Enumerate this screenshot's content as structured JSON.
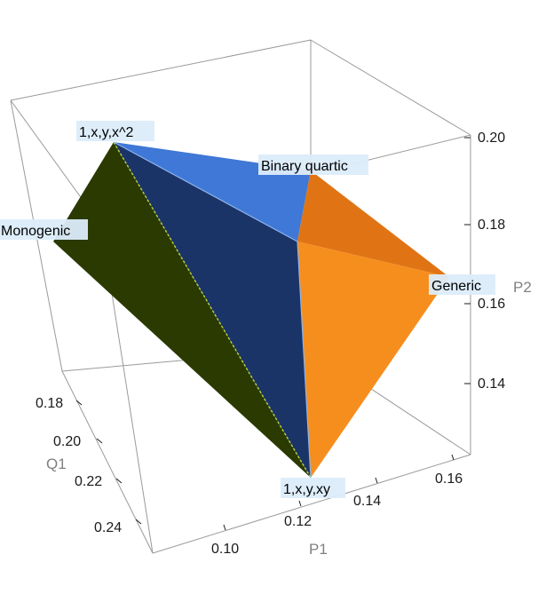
{
  "chart_data": {
    "type": "3d-polyhedron",
    "title": "",
    "axes": {
      "x": {
        "label": "P1",
        "ticks": [
          "0.10",
          "0.12",
          "0.14",
          "0.16"
        ]
      },
      "y": {
        "label": "Q1",
        "ticks": [
          "0.18",
          "0.20",
          "0.22",
          "0.24"
        ]
      },
      "z": {
        "label": "P2",
        "ticks": [
          "0.14",
          "0.16",
          "0.18",
          "0.20"
        ]
      }
    },
    "vertices": [
      {
        "label": "1,x,y,x^2"
      },
      {
        "label": "Binary quartic"
      },
      {
        "label": "Monogenic"
      },
      {
        "label": "Generic"
      },
      {
        "label": "1,x,y,xy"
      }
    ],
    "colors": {
      "olive": "#2b3a00",
      "navy": "#1b3468",
      "blue": "#3f78d6",
      "orange_dark": "#e07414",
      "orange": "#f68e1e",
      "label_bg": "#dcecfa"
    }
  }
}
